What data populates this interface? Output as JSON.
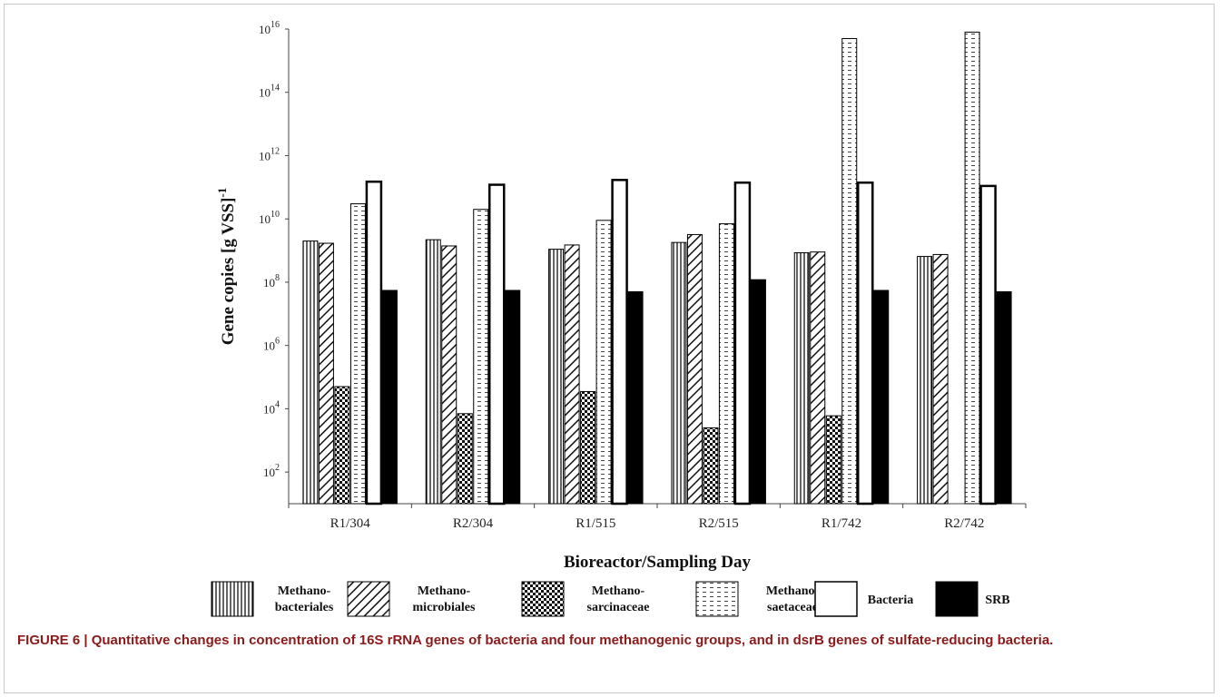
{
  "caption": "FIGURE 6 | Quantitative changes in concentration of 16S rRNA genes of bacteria and four methanogenic groups, and in dsrB genes of sulfate-reducing bacteria.",
  "chart_data": {
    "type": "bar",
    "yscale": "log",
    "ylabel": "Gene copies [g VSS]",
    "ylabel_superscript": "-1",
    "xlabel": "Bioreactor/Sampling Day",
    "ylim": [
      10,
      1e+16
    ],
    "yticks": [
      {
        "value": 100,
        "base": "10",
        "exp": "2"
      },
      {
        "value": 10000,
        "base": "10",
        "exp": "4"
      },
      {
        "value": 1000000,
        "base": "10",
        "exp": "6"
      },
      {
        "value": 100000000,
        "base": "10",
        "exp": "8"
      },
      {
        "value": 10000000000,
        "base": "10",
        "exp": "10"
      },
      {
        "value": 1000000000000,
        "base": "10",
        "exp": "12"
      },
      {
        "value": 100000000000000,
        "base": "10",
        "exp": "14"
      },
      {
        "value": 10000000000000000,
        "base": "10",
        "exp": "16"
      }
    ],
    "categories": [
      "R1/304",
      "R2/304",
      "R1/515",
      "R2/515",
      "R1/742",
      "R2/742"
    ],
    "legend_position": "bottom",
    "series": [
      {
        "name": "Methanobacteriales",
        "legend_line1": "Methano-",
        "legend_line2": "bacteriales",
        "pattern": "vertical-lines",
        "values": [
          2000000000.0,
          2200000000.0,
          1100000000.0,
          1800000000.0,
          850000000.0,
          650000000.0
        ]
      },
      {
        "name": "Methanomicrobiales",
        "legend_line1": "Methano-",
        "legend_line2": "microbiales",
        "pattern": "diagonal-lines",
        "values": [
          1700000000.0,
          1400000000.0,
          1500000000.0,
          3200000000.0,
          900000000.0,
          750000000.0
        ]
      },
      {
        "name": "Methanosarcinaceae",
        "legend_line1": "Methano-",
        "legend_line2": "sarcinaceae",
        "pattern": "checker",
        "values": [
          50000.0,
          7000.0,
          35000.0,
          2500.0,
          6000.0,
          null
        ]
      },
      {
        "name": "Methanosaetaceae",
        "legend_line1": "Methano-",
        "legend_line2": "saetaceae",
        "pattern": "dashes",
        "values": [
          30000000000.0,
          20000000000.0,
          9000000000.0,
          7000000000.0,
          5000000000000000.0,
          8000000000000000.0
        ]
      },
      {
        "name": "Bacteria",
        "legend_line1": "Bacteria",
        "legend_line2": "",
        "pattern": "open",
        "values": [
          150000000000.0,
          120000000000.0,
          170000000000.0,
          140000000000.0,
          140000000000.0,
          110000000000.0
        ]
      },
      {
        "name": "SRB",
        "legend_line1": "SRB",
        "legend_line2": "",
        "pattern": "solid",
        "values": [
          55000000.0,
          55000000.0,
          50000000.0,
          120000000.0,
          55000000.0,
          50000000.0
        ]
      }
    ]
  }
}
